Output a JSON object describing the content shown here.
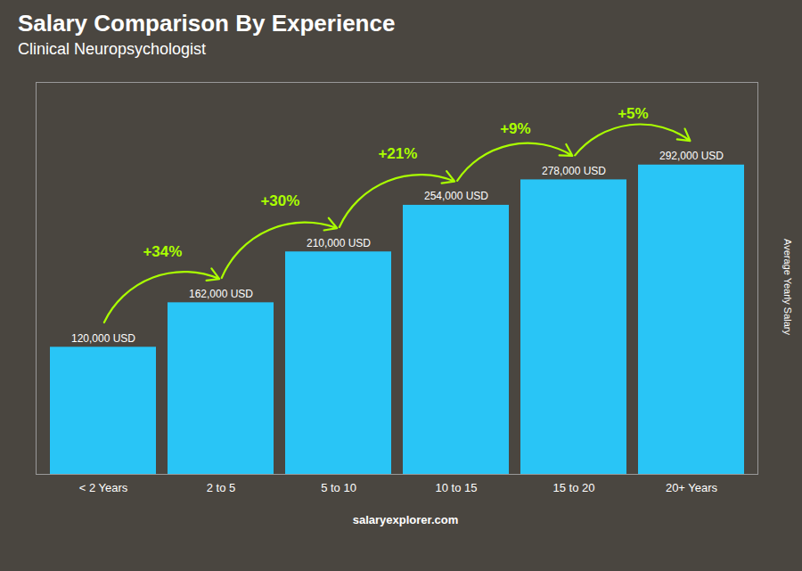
{
  "chart_data": {
    "type": "bar",
    "title": "Salary Comparison By Experience",
    "subtitle": "Clinical Neuropsychologist",
    "ylabel": "Average Yearly Salary",
    "caption": "salaryexplorer.com",
    "categories": [
      "< 2 Years",
      "2 to 5",
      "5 to 10",
      "10 to 15",
      "15 to 20",
      "20+ Years"
    ],
    "values": [
      120000,
      162000,
      210000,
      254000,
      278000,
      292000
    ],
    "value_labels": [
      "120,000 USD",
      "162,000 USD",
      "210,000 USD",
      "254,000 USD",
      "278,000 USD",
      "292,000 USD"
    ],
    "data_labels": true,
    "color": "#29c5f6",
    "ylim": [
      0,
      370000
    ],
    "tick_labels": "x",
    "annotations": [
      {
        "text": "+34%",
        "color": "#aaff00"
      },
      {
        "text": "+30%",
        "color": "#aaff00"
      },
      {
        "text": "+21%",
        "color": "#aaff00"
      },
      {
        "text": "+9%",
        "color": "#aaff00"
      },
      {
        "text": "+5%",
        "color": "#aaff00"
      }
    ]
  }
}
